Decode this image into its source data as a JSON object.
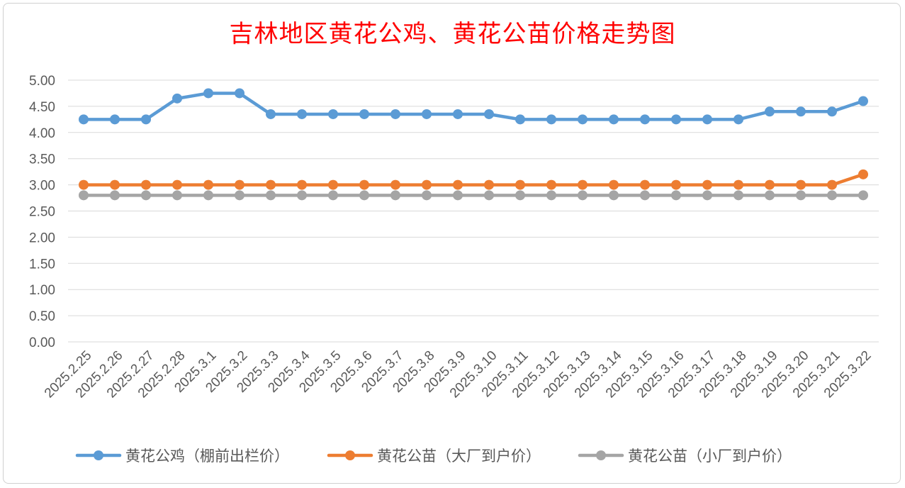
{
  "chart_data": {
    "type": "line",
    "title": "吉林地区黄花公鸡、黄花公苗价格走势图",
    "xlabel": "",
    "ylabel": "",
    "ylim": [
      0,
      5
    ],
    "yticks": [
      "0.00",
      "0.50",
      "1.00",
      "1.50",
      "2.00",
      "2.50",
      "3.00",
      "3.50",
      "4.00",
      "4.50",
      "5.00"
    ],
    "grid": true,
    "legend_position": "bottom",
    "categories": [
      "2025.2.25",
      "2025.2.26",
      "2025.2.27",
      "2025.2.28",
      "2025.3.1",
      "2025.3.2",
      "2025.3.3",
      "2025.3.4",
      "2025.3.5",
      "2025.3.6",
      "2025.3.7",
      "2025.3.8",
      "2025.3.9",
      "2025.3.10",
      "2025.3.11",
      "2025.3.12",
      "2025.3.13",
      "2025.3.14",
      "2025.3.15",
      "2025.3.16",
      "2025.3.17",
      "2025.3.18",
      "2025.3.19",
      "2025.3.20",
      "2025.3.21",
      "2025.3.22"
    ],
    "series": [
      {
        "name": "黄花公鸡（棚前出栏价）",
        "color": "#5b9bd5",
        "values": [
          4.25,
          4.25,
          4.25,
          4.65,
          4.75,
          4.75,
          4.35,
          4.35,
          4.35,
          4.35,
          4.35,
          4.35,
          4.35,
          4.35,
          4.25,
          4.25,
          4.25,
          4.25,
          4.25,
          4.25,
          4.25,
          4.25,
          4.4,
          4.4,
          4.4,
          4.6
        ]
      },
      {
        "name": "黄花公苗（大厂到户价）",
        "color": "#ed7d31",
        "values": [
          3.0,
          3.0,
          3.0,
          3.0,
          3.0,
          3.0,
          3.0,
          3.0,
          3.0,
          3.0,
          3.0,
          3.0,
          3.0,
          3.0,
          3.0,
          3.0,
          3.0,
          3.0,
          3.0,
          3.0,
          3.0,
          3.0,
          3.0,
          3.0,
          3.0,
          3.2
        ]
      },
      {
        "name": "黄花公苗（小厂到户价）",
        "color": "#a5a5a5",
        "values": [
          2.8,
          2.8,
          2.8,
          2.8,
          2.8,
          2.8,
          2.8,
          2.8,
          2.8,
          2.8,
          2.8,
          2.8,
          2.8,
          2.8,
          2.8,
          2.8,
          2.8,
          2.8,
          2.8,
          2.8,
          2.8,
          2.8,
          2.8,
          2.8,
          2.8,
          2.8
        ]
      }
    ]
  }
}
